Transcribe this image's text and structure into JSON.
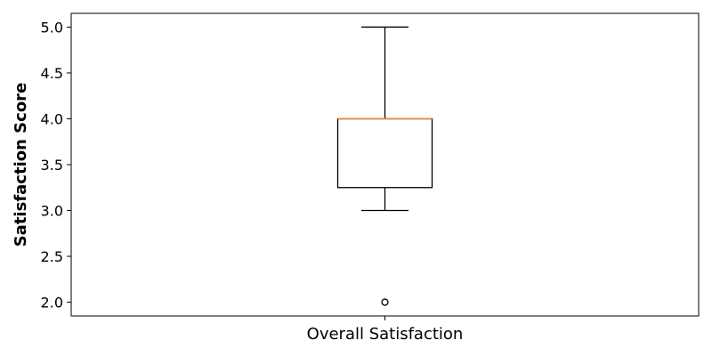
{
  "chart_data": {
    "type": "boxplot",
    "title": "",
    "xlabel": "",
    "ylabel": "Satisfaction Score",
    "categories": [
      "Overall Satisfaction"
    ],
    "ylim": [
      1.85,
      5.15
    ],
    "yticks": [
      2.0,
      2.5,
      3.0,
      3.5,
      4.0,
      4.5,
      5.0
    ],
    "ytick_labels": [
      "2.0",
      "2.5",
      "3.0",
      "3.5",
      "4.0",
      "4.5",
      "5.0"
    ],
    "grid": false,
    "series": [
      {
        "category": "Overall Satisfaction",
        "whisker_low": 3.0,
        "q1": 3.25,
        "median": 4.0,
        "q3": 4.0,
        "whisker_high": 5.0,
        "outliers": [
          2.0
        ]
      }
    ],
    "colors": {
      "box": "#000000",
      "median": "#e08c3a",
      "whisker": "#000000"
    }
  }
}
